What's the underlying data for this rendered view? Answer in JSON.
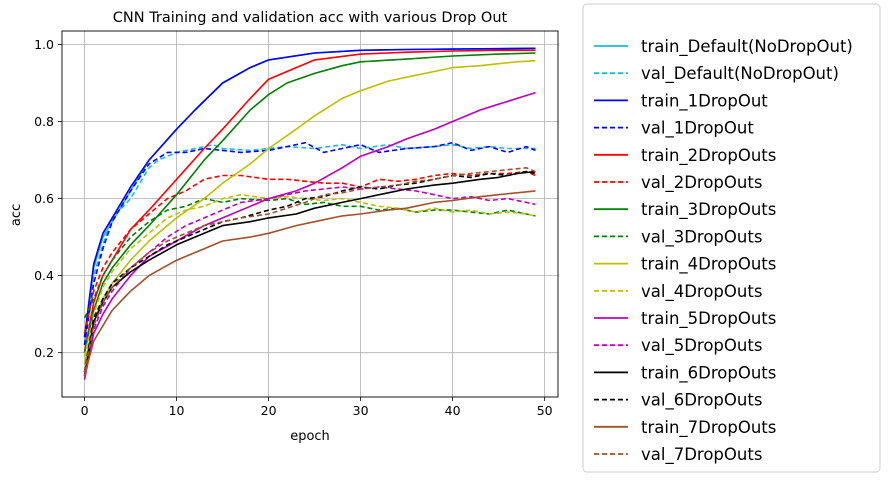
{
  "chart_data": {
    "type": "line",
    "title": "CNN Training and validation acc with various Drop Out",
    "xlabel": "epoch",
    "ylabel": "acc",
    "xlim": [
      -2.45,
      51.45
    ],
    "ylim": [
      0.085,
      1.035
    ],
    "xticks": [
      0,
      10,
      20,
      30,
      40,
      50
    ],
    "yticks": [
      0.2,
      0.4,
      0.6,
      0.8,
      1.0
    ],
    "xtick_labels": [
      "0",
      "10",
      "20",
      "30",
      "40",
      "50"
    ],
    "ytick_labels": [
      "0.2",
      "0.4",
      "0.6",
      "0.8",
      "1.0"
    ],
    "grid": true,
    "legend_position": "outside-right",
    "series": [
      {
        "name": "train_Default(NoDropOut)",
        "color": "#17becf",
        "dash": "solid",
        "x": [
          0,
          1,
          2,
          3,
          5,
          7,
          10,
          12,
          15,
          18,
          20,
          25,
          30,
          35,
          40,
          45,
          49
        ],
        "y": [
          0.22,
          0.42,
          0.5,
          0.54,
          0.62,
          0.7,
          0.78,
          0.83,
          0.9,
          0.94,
          0.96,
          0.978,
          0.985,
          0.987,
          0.988,
          0.989,
          0.99
        ]
      },
      {
        "name": "val_Default(NoDropOut)",
        "color": "#17becf",
        "dash": "dashed",
        "x": [
          0,
          1,
          2,
          3,
          5,
          7,
          8,
          10,
          12,
          14,
          15,
          18,
          20,
          22,
          25,
          28,
          30,
          33,
          35,
          38,
          40,
          42,
          44,
          46,
          48,
          49
        ],
        "y": [
          0.24,
          0.4,
          0.48,
          0.55,
          0.6,
          0.68,
          0.7,
          0.72,
          0.73,
          0.74,
          0.73,
          0.725,
          0.73,
          0.735,
          0.73,
          0.74,
          0.73,
          0.74,
          0.73,
          0.735,
          0.74,
          0.73,
          0.735,
          0.73,
          0.73,
          0.73
        ]
      },
      {
        "name": "train_1DropOut",
        "color": "#0000ff",
        "dash": "solid",
        "x": [
          0,
          1,
          2,
          3,
          5,
          7,
          10,
          12,
          15,
          18,
          20,
          25,
          30,
          35,
          40,
          45,
          49
        ],
        "y": [
          0.24,
          0.43,
          0.51,
          0.55,
          0.63,
          0.7,
          0.78,
          0.83,
          0.9,
          0.94,
          0.96,
          0.978,
          0.985,
          0.987,
          0.988,
          0.989,
          0.99
        ]
      },
      {
        "name": "val_1DropOut",
        "color": "#0000ff",
        "dash": "dashed",
        "x": [
          0,
          1,
          2,
          3,
          5,
          7,
          9,
          11,
          13,
          15,
          17,
          20,
          22,
          24,
          26,
          28,
          30,
          32,
          35,
          38,
          40,
          42,
          44,
          46,
          48,
          49
        ],
        "y": [
          0.22,
          0.38,
          0.47,
          0.54,
          0.62,
          0.69,
          0.72,
          0.72,
          0.73,
          0.725,
          0.72,
          0.725,
          0.735,
          0.745,
          0.72,
          0.73,
          0.74,
          0.72,
          0.73,
          0.735,
          0.745,
          0.725,
          0.735,
          0.72,
          0.735,
          0.725
        ]
      },
      {
        "name": "train_2DropOuts",
        "color": "#ff0000",
        "dash": "solid",
        "x": [
          0,
          1,
          2,
          3,
          5,
          7,
          10,
          13,
          15,
          18,
          20,
          25,
          30,
          35,
          40,
          45,
          49
        ],
        "y": [
          0.2,
          0.33,
          0.4,
          0.44,
          0.52,
          0.57,
          0.65,
          0.73,
          0.78,
          0.86,
          0.91,
          0.96,
          0.975,
          0.98,
          0.983,
          0.985,
          0.985
        ]
      },
      {
        "name": "val_2DropOuts",
        "color": "#ff0000",
        "dash": "dashed",
        "x": [
          0,
          1,
          2,
          3,
          5,
          7,
          9,
          11,
          13,
          15,
          17,
          20,
          22,
          24,
          26,
          28,
          30,
          32,
          34,
          36,
          38,
          40,
          42,
          44,
          46,
          48,
          49
        ],
        "y": [
          0.25,
          0.36,
          0.42,
          0.46,
          0.52,
          0.56,
          0.6,
          0.62,
          0.65,
          0.66,
          0.66,
          0.65,
          0.65,
          0.645,
          0.64,
          0.64,
          0.63,
          0.65,
          0.645,
          0.65,
          0.66,
          0.665,
          0.66,
          0.665,
          0.665,
          0.67,
          0.66
        ]
      },
      {
        "name": "train_3DropOuts",
        "color": "#008000",
        "dash": "solid",
        "x": [
          0,
          1,
          2,
          3,
          5,
          7,
          10,
          13,
          15,
          18,
          20,
          22,
          25,
          28,
          30,
          35,
          40,
          45,
          49
        ],
        "y": [
          0.2,
          0.31,
          0.38,
          0.42,
          0.48,
          0.53,
          0.61,
          0.7,
          0.75,
          0.83,
          0.87,
          0.9,
          0.925,
          0.945,
          0.955,
          0.962,
          0.97,
          0.975,
          0.978
        ]
      },
      {
        "name": "val_3DropOuts",
        "color": "#008000",
        "dash": "dashed",
        "x": [
          0,
          1,
          2,
          3,
          5,
          7,
          9,
          11,
          13,
          15,
          17,
          20,
          22,
          24,
          26,
          28,
          30,
          32,
          34,
          36,
          38,
          40,
          42,
          44,
          46,
          48,
          49
        ],
        "y": [
          0.29,
          0.34,
          0.4,
          0.44,
          0.5,
          0.54,
          0.57,
          0.58,
          0.6,
          0.59,
          0.6,
          0.595,
          0.6,
          0.585,
          0.59,
          0.58,
          0.58,
          0.57,
          0.575,
          0.565,
          0.57,
          0.57,
          0.565,
          0.56,
          0.57,
          0.56,
          0.555
        ]
      },
      {
        "name": "train_4DropOuts",
        "color": "#bfbf00",
        "dash": "solid",
        "x": [
          0,
          1,
          2,
          3,
          5,
          7,
          10,
          13,
          15,
          18,
          20,
          23,
          25,
          28,
          30,
          33,
          35,
          38,
          40,
          43,
          45,
          47,
          49
        ],
        "y": [
          0.17,
          0.28,
          0.34,
          0.38,
          0.44,
          0.49,
          0.55,
          0.6,
          0.64,
          0.69,
          0.73,
          0.78,
          0.815,
          0.86,
          0.88,
          0.905,
          0.915,
          0.93,
          0.94,
          0.945,
          0.95,
          0.955,
          0.958
        ]
      },
      {
        "name": "val_4DropOuts",
        "color": "#bfbf00",
        "dash": "dashed",
        "x": [
          0,
          1,
          2,
          3,
          5,
          7,
          9,
          11,
          13,
          15,
          17,
          20,
          22,
          24,
          26,
          28,
          30,
          32,
          34,
          36,
          38,
          40,
          42,
          44,
          46,
          48,
          49
        ],
        "y": [
          0.19,
          0.3,
          0.37,
          0.41,
          0.47,
          0.51,
          0.55,
          0.57,
          0.58,
          0.6,
          0.61,
          0.6,
          0.605,
          0.6,
          0.595,
          0.6,
          0.59,
          0.58,
          0.575,
          0.565,
          0.575,
          0.565,
          0.57,
          0.56,
          0.565,
          0.56,
          0.555
        ]
      },
      {
        "name": "train_5DropOuts",
        "color": "#bf00bf",
        "dash": "solid",
        "x": [
          0,
          1,
          2,
          3,
          5,
          7,
          10,
          13,
          15,
          18,
          20,
          23,
          25,
          28,
          30,
          33,
          35,
          38,
          40,
          43,
          45,
          47,
          49
        ],
        "y": [
          0.13,
          0.25,
          0.3,
          0.34,
          0.4,
          0.45,
          0.49,
          0.53,
          0.55,
          0.58,
          0.6,
          0.62,
          0.64,
          0.68,
          0.71,
          0.735,
          0.755,
          0.78,
          0.8,
          0.83,
          0.845,
          0.86,
          0.875
        ]
      },
      {
        "name": "val_5DropOuts",
        "color": "#bf00bf",
        "dash": "dashed",
        "x": [
          0,
          1,
          2,
          3,
          5,
          7,
          9,
          11,
          13,
          15,
          17,
          20,
          22,
          24,
          26,
          28,
          30,
          32,
          34,
          36,
          38,
          40,
          42,
          44,
          46,
          48,
          49
        ],
        "y": [
          0.14,
          0.26,
          0.32,
          0.36,
          0.42,
          0.46,
          0.5,
          0.53,
          0.55,
          0.57,
          0.59,
          0.6,
          0.61,
          0.62,
          0.625,
          0.63,
          0.625,
          0.63,
          0.625,
          0.62,
          0.61,
          0.6,
          0.605,
          0.595,
          0.6,
          0.59,
          0.585
        ]
      },
      {
        "name": "train_6DropOuts",
        "color": "#000000",
        "dash": "solid",
        "x": [
          0,
          1,
          2,
          3,
          5,
          7,
          10,
          13,
          15,
          18,
          20,
          23,
          25,
          28,
          30,
          33,
          35,
          38,
          40,
          43,
          45,
          47,
          49
        ],
        "y": [
          0.14,
          0.28,
          0.33,
          0.37,
          0.41,
          0.44,
          0.48,
          0.51,
          0.53,
          0.54,
          0.55,
          0.56,
          0.575,
          0.59,
          0.6,
          0.615,
          0.625,
          0.635,
          0.64,
          0.65,
          0.655,
          0.665,
          0.67
        ]
      },
      {
        "name": "val_6DropOuts",
        "color": "#000000",
        "dash": "dashed",
        "x": [
          0,
          1,
          2,
          3,
          5,
          7,
          9,
          11,
          13,
          15,
          17,
          20,
          22,
          24,
          26,
          28,
          30,
          32,
          34,
          36,
          38,
          40,
          42,
          44,
          46,
          48,
          49
        ],
        "y": [
          0.15,
          0.29,
          0.34,
          0.38,
          0.42,
          0.45,
          0.48,
          0.5,
          0.52,
          0.54,
          0.55,
          0.57,
          0.58,
          0.6,
          0.605,
          0.62,
          0.63,
          0.625,
          0.635,
          0.64,
          0.65,
          0.66,
          0.655,
          0.665,
          0.66,
          0.67,
          0.665
        ]
      },
      {
        "name": "train_7DropOuts",
        "color": "#a0522d",
        "dash": "solid",
        "x": [
          0,
          1,
          2,
          3,
          5,
          7,
          10,
          13,
          15,
          18,
          20,
          23,
          25,
          28,
          30,
          33,
          35,
          38,
          40,
          43,
          45,
          47,
          49
        ],
        "y": [
          0.14,
          0.23,
          0.27,
          0.31,
          0.36,
          0.4,
          0.44,
          0.47,
          0.49,
          0.5,
          0.51,
          0.53,
          0.54,
          0.555,
          0.56,
          0.57,
          0.575,
          0.59,
          0.595,
          0.605,
          0.61,
          0.615,
          0.62
        ]
      },
      {
        "name": "val_7DropOuts",
        "color": "#a0522d",
        "dash": "dashed",
        "x": [
          0,
          1,
          2,
          3,
          5,
          7,
          9,
          11,
          13,
          15,
          17,
          20,
          22,
          24,
          26,
          28,
          30,
          32,
          34,
          36,
          38,
          40,
          42,
          44,
          46,
          48,
          49
        ],
        "y": [
          0.15,
          0.27,
          0.33,
          0.37,
          0.42,
          0.46,
          0.49,
          0.51,
          0.53,
          0.54,
          0.55,
          0.56,
          0.575,
          0.59,
          0.61,
          0.615,
          0.625,
          0.63,
          0.635,
          0.645,
          0.65,
          0.66,
          0.665,
          0.67,
          0.675,
          0.68,
          0.67
        ]
      }
    ]
  }
}
